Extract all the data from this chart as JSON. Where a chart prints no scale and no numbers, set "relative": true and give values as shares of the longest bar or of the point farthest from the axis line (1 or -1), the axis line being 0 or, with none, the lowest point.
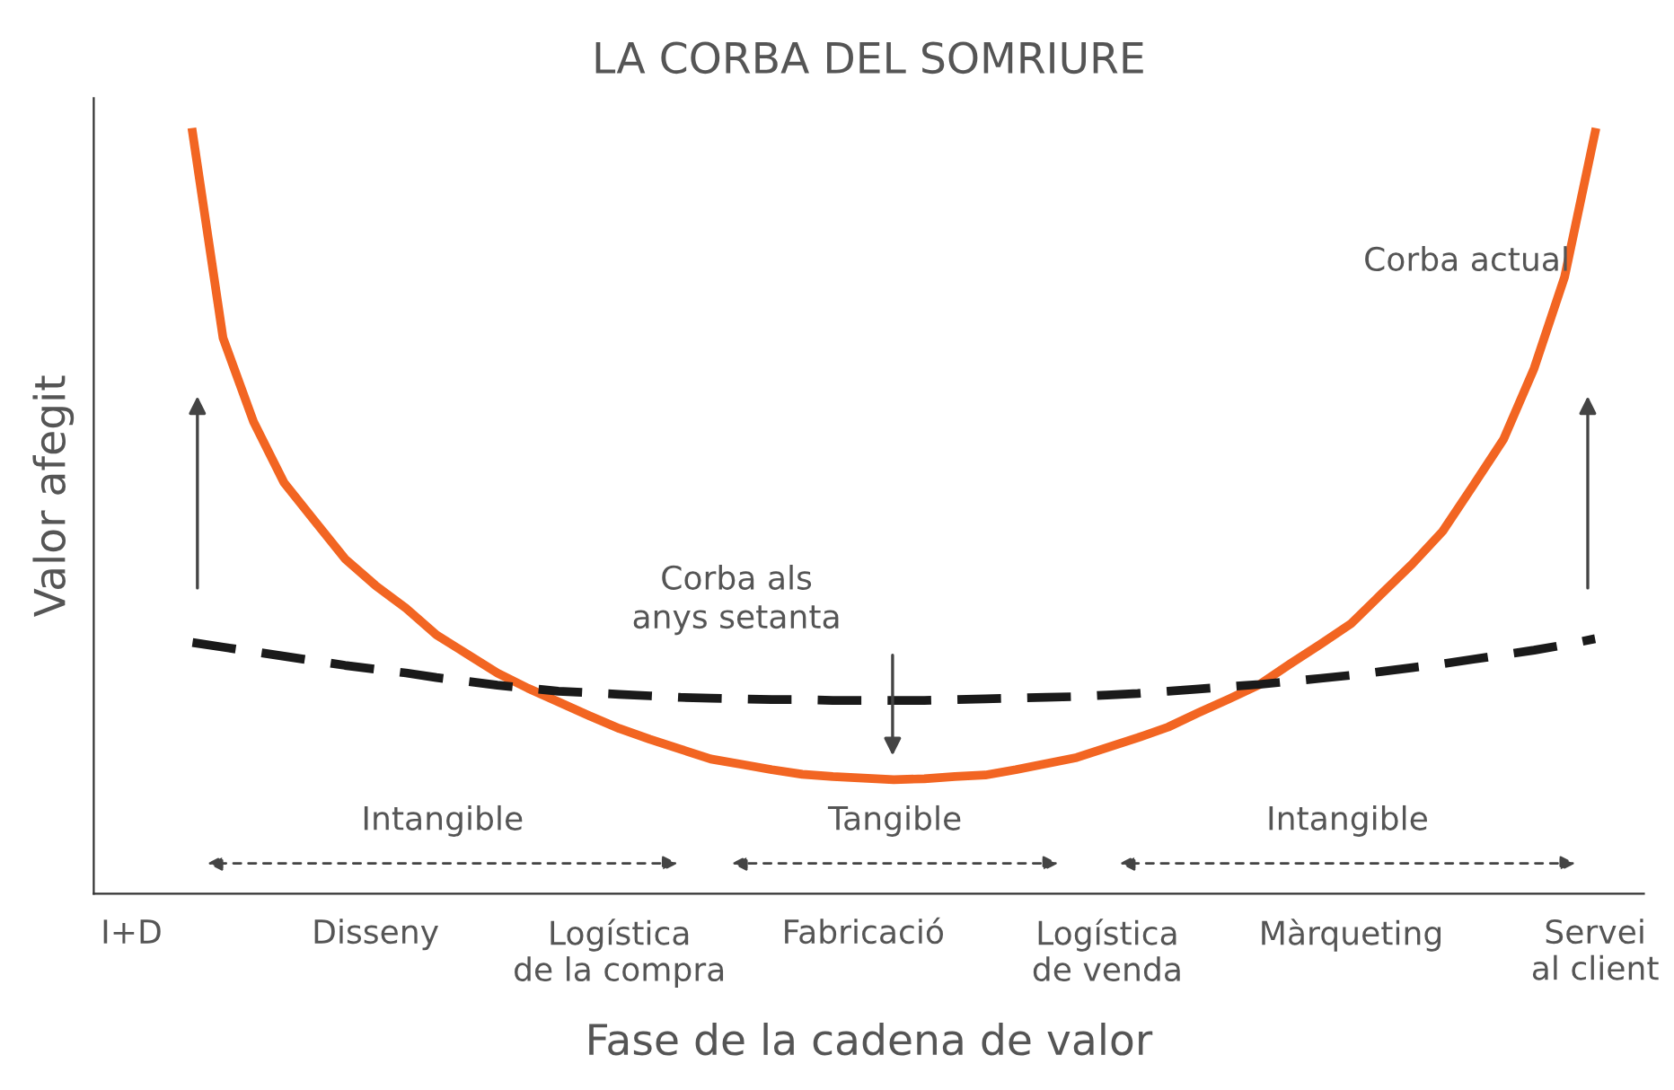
{
  "chart_data": {
    "type": "line",
    "title": "LA CORBA DEL SOMRIURE",
    "xlabel": "Fase de la cadena de valor",
    "ylabel": "Valor afegit",
    "categories": [
      "I+D",
      null,
      null,
      null,
      null,
      null,
      null,
      null,
      "Disseny",
      null,
      null,
      null,
      null,
      null,
      null,
      null,
      "Logística\nde la compra",
      null,
      null,
      null,
      null,
      null,
      null,
      null,
      "Fabricació",
      null,
      null,
      null,
      null,
      null,
      null,
      null,
      "Logística\nde venda",
      null,
      null,
      null,
      null,
      null,
      null,
      null,
      "Màrqueting",
      null,
      null,
      null,
      null,
      null,
      null,
      null,
      "Servei\nal client"
    ],
    "relative": true,
    "grid": false,
    "legend": false,
    "marker": "none",
    "annotations": [
      "Intangible",
      "Tangible",
      "Intangible"
    ],
    "series": [
      {
        "name": "Corba actual",
        "color": "#f26522",
        "line_style": "solid",
        "values": [
          null,
          null,
          1.0,
          0.73,
          0.62,
          0.54,
          0.49,
          0.44,
          0.405,
          0.375,
          0.34,
          0.315,
          0.29,
          0.27,
          0.252,
          0.234,
          0.217,
          0.203,
          0.19,
          0.177,
          0.17,
          0.163,
          0.157,
          0.154,
          0.152,
          0.15,
          0.151,
          0.154,
          0.156,
          0.163,
          0.171,
          0.179,
          0.192,
          0.205,
          0.219,
          0.238,
          0.256,
          0.275,
          0.302,
          0.328,
          0.355,
          0.394,
          0.433,
          0.476,
          0.536,
          0.597,
          0.69,
          0.81,
          1.0
        ]
      },
      {
        "name": "Corba als\nanys setanta",
        "color": "#1a1a1a",
        "line_style": "dashed",
        "values": [
          null,
          null,
          0.33,
          0.324,
          0.318,
          0.312,
          0.306,
          0.3,
          0.295,
          0.29,
          0.284,
          0.279,
          0.274,
          0.27,
          0.266,
          0.264,
          0.262,
          0.26,
          0.258,
          0.257,
          0.256,
          0.255,
          0.255,
          0.254,
          0.254,
          0.254,
          0.254,
          0.255,
          0.256,
          0.257,
          0.258,
          0.259,
          0.261,
          0.263,
          0.266,
          0.269,
          0.272,
          0.275,
          0.279,
          0.283,
          0.287,
          0.292,
          0.297,
          0.302,
          0.308,
          0.314,
          0.32,
          0.327,
          0.335
        ]
      }
    ]
  }
}
